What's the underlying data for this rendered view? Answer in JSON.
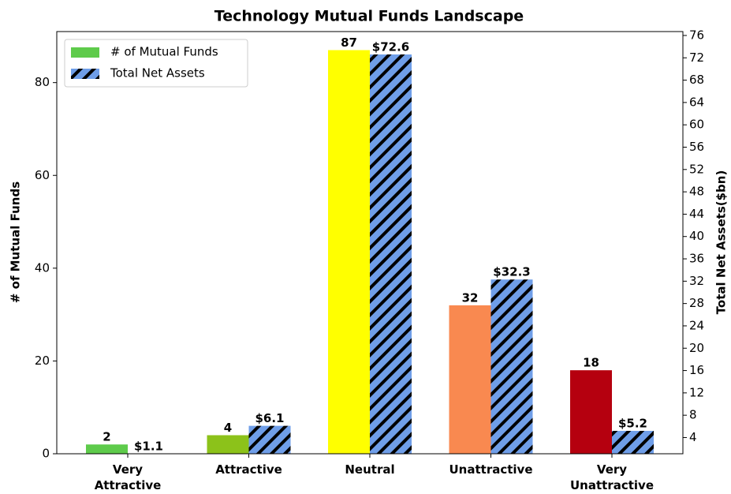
{
  "chart_data": {
    "type": "bar",
    "title": "Technology Mutual Funds Landscape",
    "y_label": "# of Mutual Funds",
    "y2_label": "Total Net Assets($bn)",
    "categories": [
      "Very\nAttractive",
      "Attractive",
      "Neutral",
      "Unattractive",
      "Very\nUnattractive"
    ],
    "series": [
      {
        "name": "# of Mutual Funds",
        "color": "#5ecb4b",
        "colors": [
          "#5ecb4b",
          "#8cc21a",
          "#ffff00",
          "#f98950",
          "#b5000f"
        ],
        "values": [
          2,
          4,
          87,
          32,
          18
        ]
      },
      {
        "name": "Total Net Assets",
        "color": "#6f9ee8",
        "hatch": "//",
        "axis": "y2",
        "values": [
          1.1,
          6.1,
          72.6,
          32.3,
          5.2
        ],
        "value_labels": [
          "$1.1",
          "$6.1",
          "$72.6",
          "$32.3",
          "$5.2"
        ]
      }
    ],
    "ylim": [
      0,
      91
    ],
    "yticks": [
      0,
      20,
      40,
      60,
      80
    ],
    "y2lim": [
      1.1,
      76.7
    ],
    "y2ticks": [
      4,
      8,
      12,
      16,
      20,
      24,
      28,
      32,
      36,
      40,
      44,
      48,
      52,
      56,
      60,
      64,
      68,
      72,
      76
    ],
    "legend": "upper left"
  }
}
